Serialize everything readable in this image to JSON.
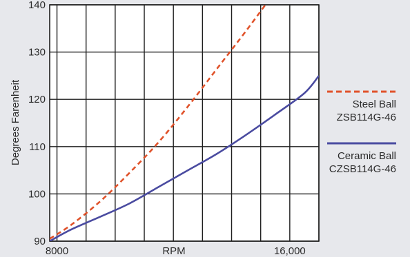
{
  "chart_data": {
    "type": "line",
    "xlabel": "RPM",
    "ylabel": "Degrees Farenheit",
    "xlim": [
      7750,
      17000
    ],
    "ylim": [
      90,
      140
    ],
    "grid": true,
    "x_ticks": [
      {
        "value": 8000,
        "label": "8000"
      },
      {
        "value": 16000,
        "label": "16,000"
      }
    ],
    "y_ticks": [
      90,
      100,
      110,
      120,
      130,
      140
    ],
    "legend_position": "right",
    "series": [
      {
        "name": [
          "Steel Ball",
          "ZSB114G-46"
        ],
        "color": "#e0522a",
        "dash": true,
        "x": [
          7750,
          8500,
          9500,
          10500,
          11500,
          12500,
          13500,
          14500,
          15400
        ],
        "y": [
          90.5,
          93.5,
          98.5,
          104.5,
          111,
          118.5,
          126.5,
          134.5,
          142
        ]
      },
      {
        "name": [
          "Ceramic Ball",
          "CZSB114G-46"
        ],
        "color": "#4a4ba0",
        "dash": false,
        "x": [
          7750,
          8500,
          9500,
          10500,
          11500,
          12500,
          13500,
          14500,
          15500,
          16500,
          17000
        ],
        "y": [
          90,
          92.5,
          95.2,
          98,
          101.5,
          105,
          108.5,
          112.5,
          116.8,
          121.3,
          125
        ]
      }
    ]
  }
}
